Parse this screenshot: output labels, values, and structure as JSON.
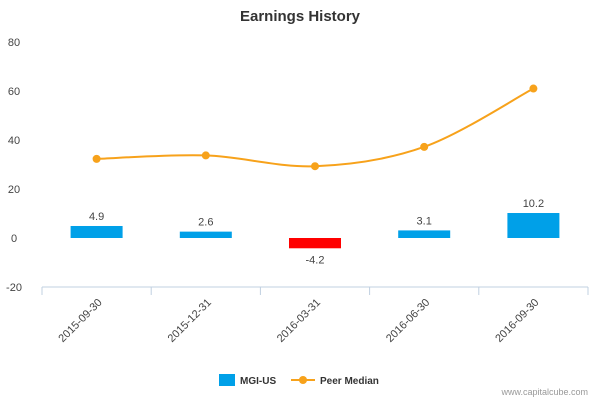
{
  "chart_data": {
    "type": "bar",
    "title": "Earnings History",
    "categories": [
      "2015-09-30",
      "2015-12-31",
      "2016-03-31",
      "2016-06-30",
      "2016-09-30"
    ],
    "ylim": [
      -20,
      80
    ],
    "yticks": [
      -20,
      0,
      20,
      40,
      60,
      80
    ],
    "grid": false,
    "legend_position": "bottom-center",
    "series": [
      {
        "name": "MGI-US",
        "kind": "bar",
        "values": [
          4.9,
          2.6,
          -4.2,
          3.1,
          10.2
        ],
        "labels": [
          "4.9",
          "2.6",
          "-4.2",
          "3.1",
          "10.2"
        ],
        "color": "#00a0e8",
        "negative_color": "#ff0000"
      },
      {
        "name": "Peer Median",
        "kind": "line",
        "values": [
          32.3,
          33.7,
          29.3,
          37.2,
          61.0
        ],
        "color": "#f7a21b"
      }
    ]
  },
  "credit": "www.capitalcube.com"
}
